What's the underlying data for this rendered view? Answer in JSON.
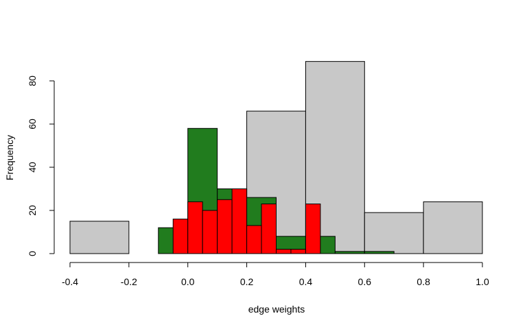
{
  "chart_data": {
    "type": "bar",
    "title": "",
    "xlabel": "edge weights",
    "ylabel": "Frequency",
    "xlim": [
      -0.4,
      1.0
    ],
    "ylim": [
      0,
      80
    ],
    "x_ticks": [
      "-0.4",
      "-0.2",
      "0.0",
      "0.2",
      "0.4",
      "0.6",
      "0.8",
      "1.0"
    ],
    "y_ticks": [
      "0",
      "20",
      "40",
      "60",
      "80"
    ],
    "grid": false,
    "legend": "none",
    "series": [
      {
        "color": "#c8c8c8",
        "bins": [
          {
            "x0": -0.4,
            "x1": -0.2,
            "count": 15
          },
          {
            "x0": -0.2,
            "x1": 0.0,
            "count": 0
          },
          {
            "x0": 0.2,
            "x1": 0.4,
            "count": 66
          },
          {
            "x0": 0.4,
            "x1": 0.6,
            "count": 89
          },
          {
            "x0": 0.6,
            "x1": 0.8,
            "count": 19
          },
          {
            "x0": 0.8,
            "x1": 1.0,
            "count": 24
          }
        ]
      },
      {
        "color": "#217c1e",
        "bins": [
          {
            "x0": -0.1,
            "x1": 0.0,
            "count": 12
          },
          {
            "x0": 0.0,
            "x1": 0.1,
            "count": 58
          },
          {
            "x0": 0.1,
            "x1": 0.2,
            "count": 30
          },
          {
            "x0": 0.2,
            "x1": 0.3,
            "count": 26
          },
          {
            "x0": 0.3,
            "x1": 0.4,
            "count": 8
          },
          {
            "x0": 0.4,
            "x1": 0.5,
            "count": 8
          },
          {
            "x0": 0.5,
            "x1": 0.6,
            "count": 1
          },
          {
            "x0": 0.6,
            "x1": 0.7,
            "count": 1
          }
        ]
      },
      {
        "color": "#ff0000",
        "bins": [
          {
            "x0": -0.05,
            "x1": 0.0,
            "count": 16
          },
          {
            "x0": 0.0,
            "x1": 0.05,
            "count": 24
          },
          {
            "x0": 0.05,
            "x1": 0.1,
            "count": 20
          },
          {
            "x0": 0.1,
            "x1": 0.15,
            "count": 25
          },
          {
            "x0": 0.15,
            "x1": 0.2,
            "count": 30
          },
          {
            "x0": 0.2,
            "x1": 0.25,
            "count": 13
          },
          {
            "x0": 0.25,
            "x1": 0.3,
            "count": 23
          },
          {
            "x0": 0.3,
            "x1": 0.35,
            "count": 2
          },
          {
            "x0": 0.35,
            "x1": 0.4,
            "count": 2
          },
          {
            "x0": 0.4,
            "x1": 0.45,
            "count": 23
          }
        ]
      }
    ]
  }
}
